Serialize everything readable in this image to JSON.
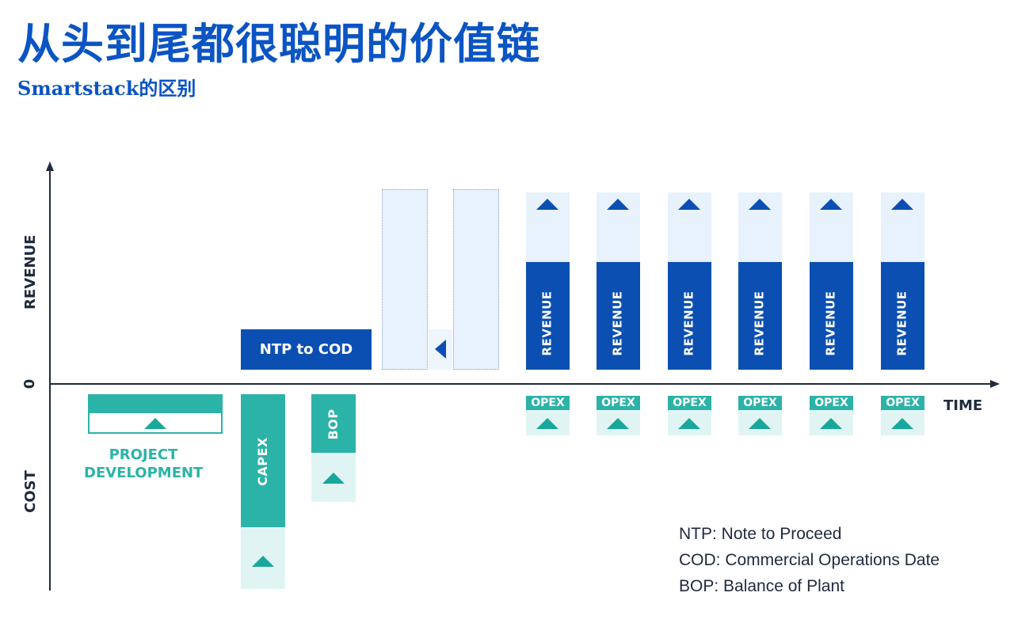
{
  "header": {
    "title": "从头到尾都很聪明的价值链",
    "subtitle": "Smartstack的区别"
  },
  "axes": {
    "revenue_label": "REVENUE",
    "cost_label": "COST",
    "zero_label": "0",
    "time_label": "TIME"
  },
  "stages": {
    "ntp_to_cod": "NTP to COD",
    "capex": "CAPEX",
    "bop": "BOP",
    "project_development": [
      "PROJECT",
      "DEVELOPMENT"
    ]
  },
  "periods": [
    {
      "revenue": "REVENUE",
      "opex": "OPEX"
    },
    {
      "revenue": "REVENUE",
      "opex": "OPEX"
    },
    {
      "revenue": "REVENUE",
      "opex": "OPEX"
    },
    {
      "revenue": "REVENUE",
      "opex": "OPEX"
    },
    {
      "revenue": "REVENUE",
      "opex": "OPEX"
    },
    {
      "revenue": "REVENUE",
      "opex": "OPEX"
    }
  ],
  "legend": [
    "NTP: Note to Proceed",
    "COD: Commercial Operations Date",
    "BOP: Balance of Plant"
  ],
  "colors": {
    "title": "#0b54c4",
    "navy": "#0b4fb3",
    "pale_blue": "#e8f2fc",
    "teal": "#2bb3a8",
    "mint": "#e0f5f3",
    "axis": "#1f2a3d"
  }
}
